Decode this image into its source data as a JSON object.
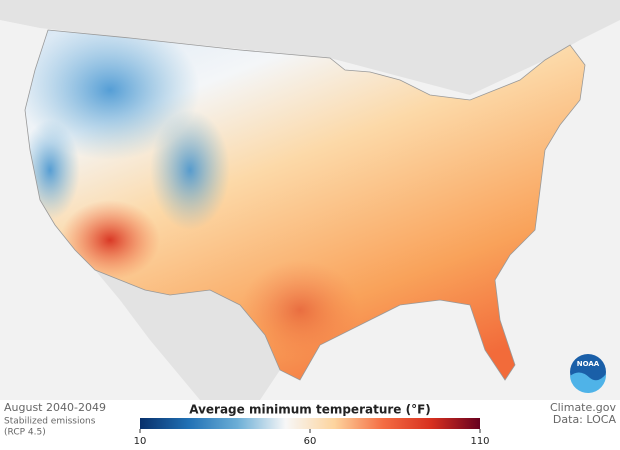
{
  "caption": {
    "period": "August 2040-2049",
    "scenario": "Stabilized emissions",
    "scenario_detail": "(RCP 4.5)"
  },
  "credit": {
    "source": "Climate.gov",
    "data": "Data: LOCA"
  },
  "logo": {
    "text": "NOAA"
  },
  "legend": {
    "title": "Average minimum temperature (°F)",
    "range": [
      10,
      110
    ],
    "ticks": [
      10,
      60,
      110
    ],
    "colors": [
      "#08306b",
      "#2171b5",
      "#6baed6",
      "#f7f7f7",
      "#fdd49e",
      "#f46d43",
      "#d7301f",
      "#67001f"
    ]
  }
}
